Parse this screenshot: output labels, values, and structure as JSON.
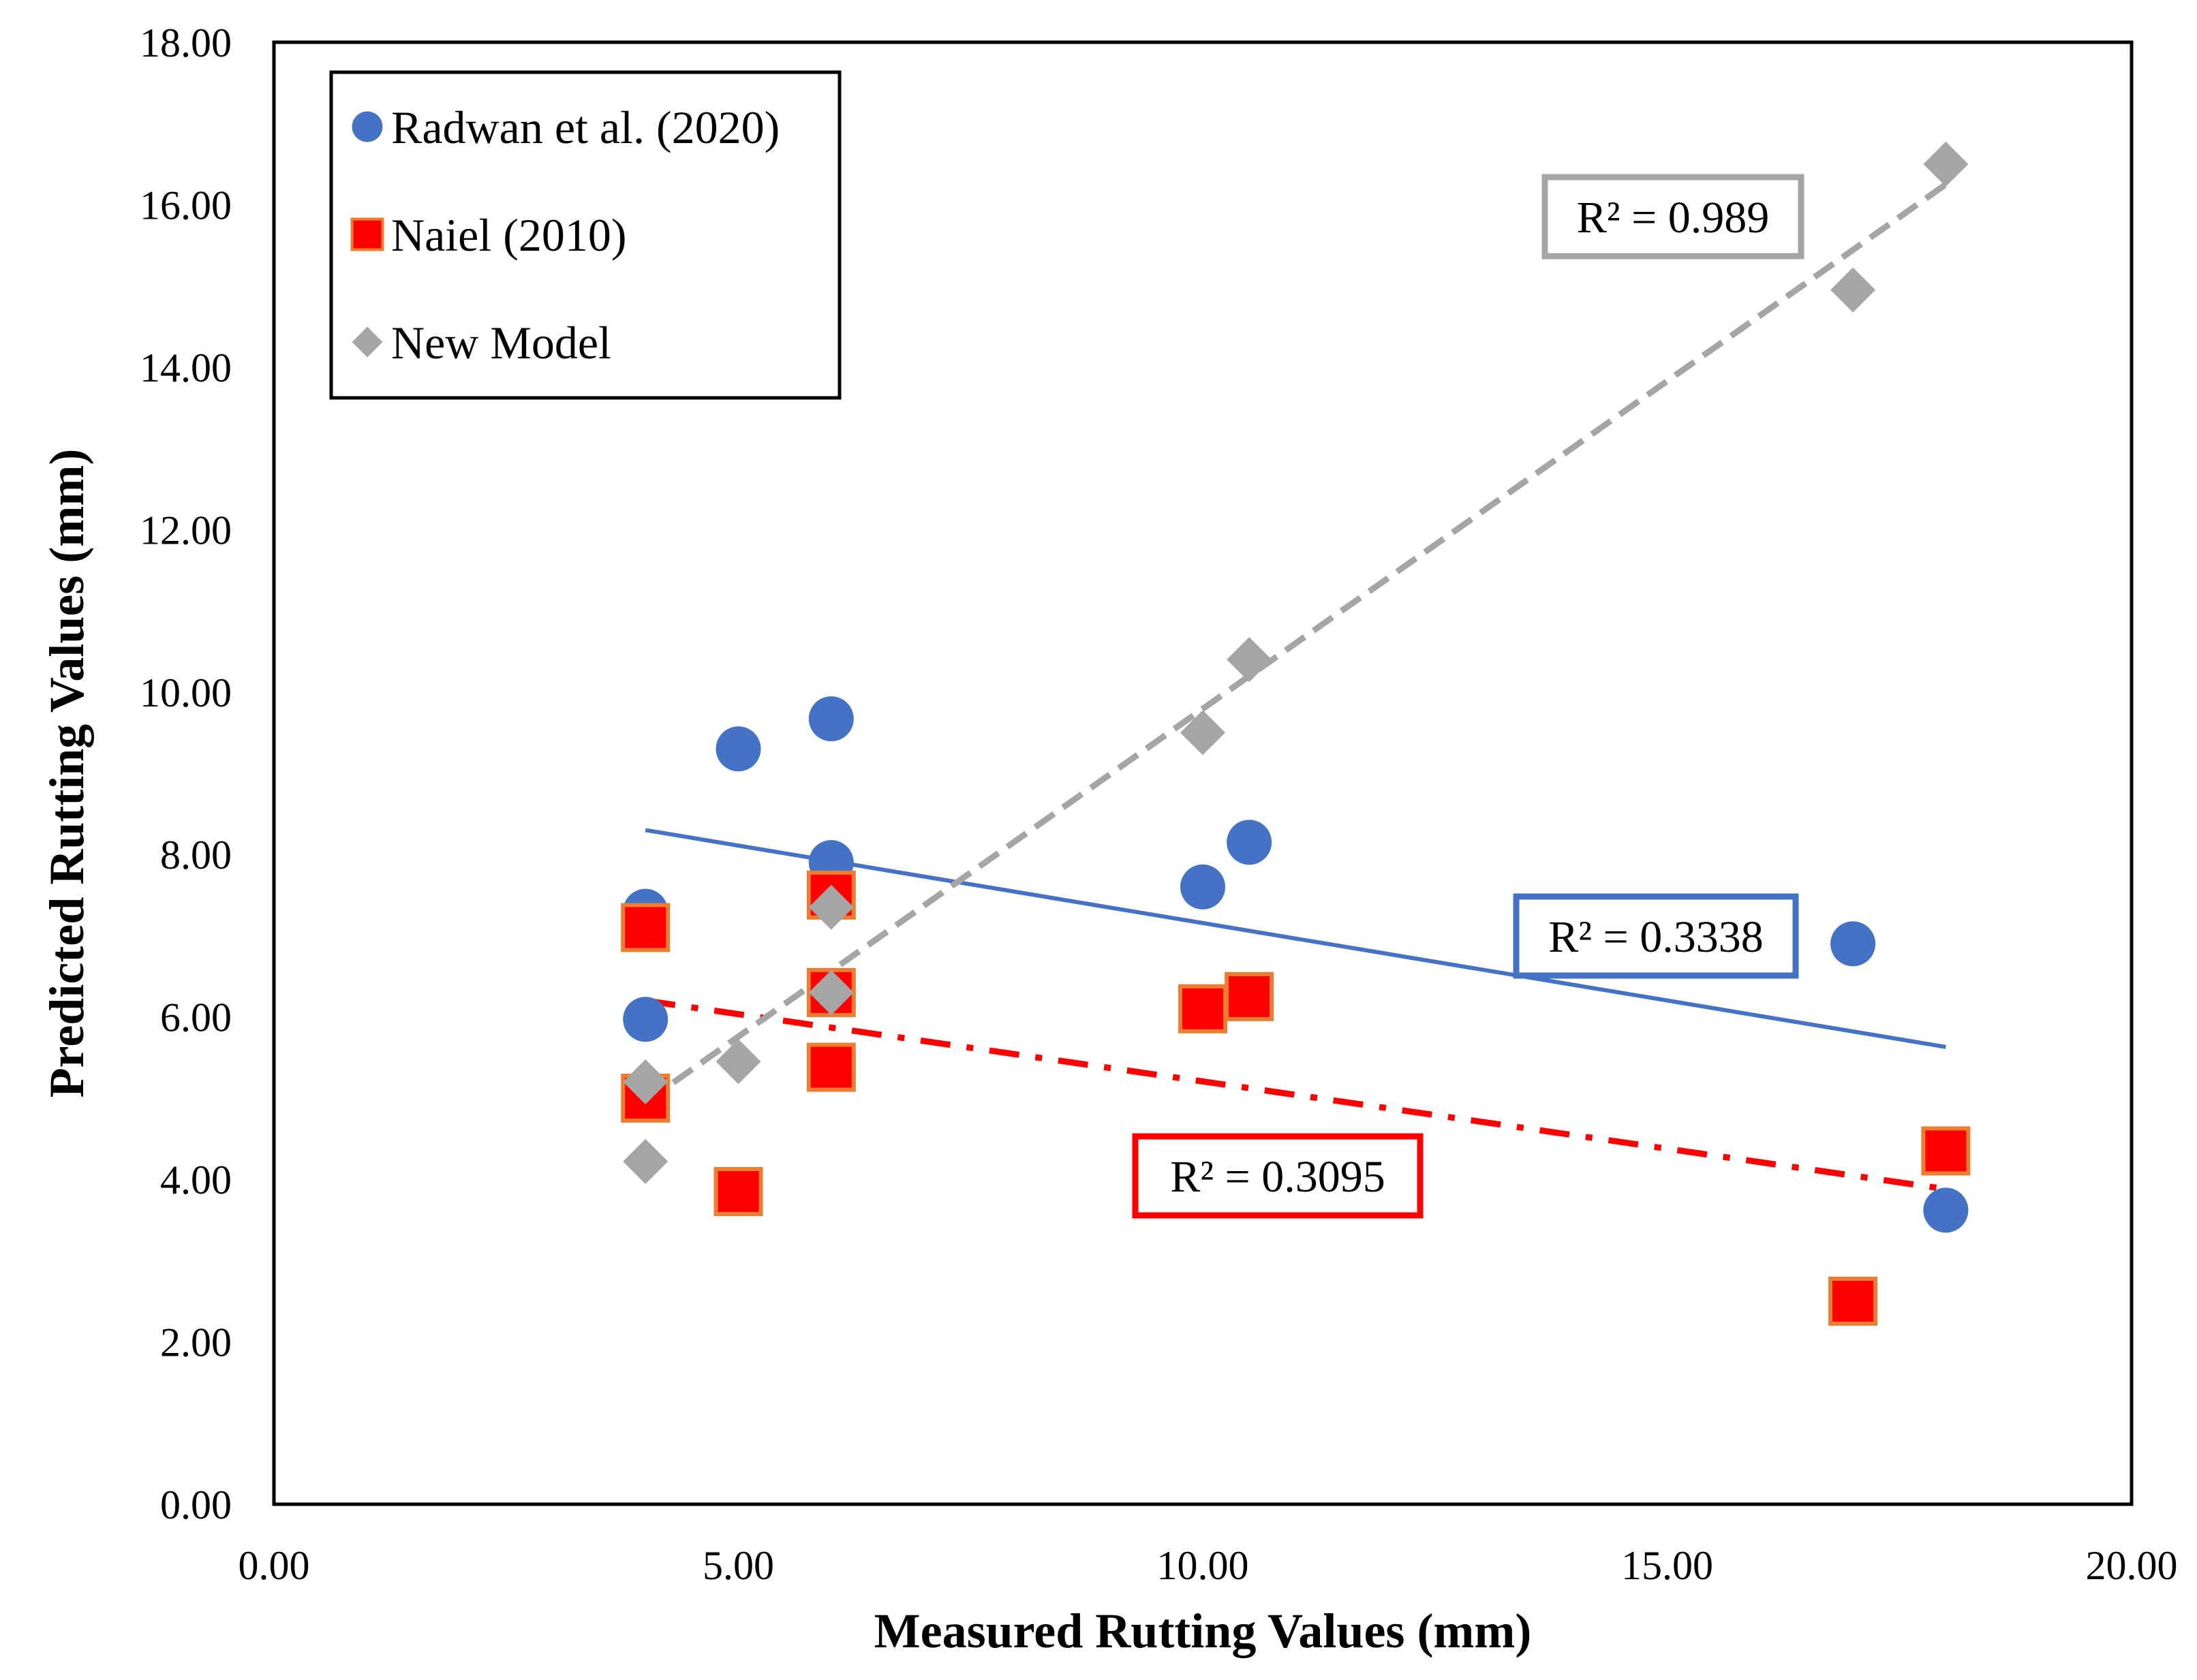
{
  "chart_data": {
    "type": "scatter",
    "xlabel": "Measured Rutting Values (mm)",
    "ylabel": "Predicted Rutting Values (mm)",
    "xlim": [
      0,
      20
    ],
    "ylim": [
      0,
      18
    ],
    "x_ticks": [
      "0.00",
      "5.00",
      "10.00",
      "15.00",
      "20.00"
    ],
    "y_ticks": [
      "0.00",
      "2.00",
      "4.00",
      "6.00",
      "8.00",
      "10.00",
      "12.00",
      "14.00",
      "16.00",
      "18.00"
    ],
    "grid": false,
    "legend_position": "top-left",
    "series": [
      {
        "name": "Radwan et al. (2020)",
        "marker": "circle",
        "color": "#4472C4",
        "points": [
          [
            4,
            7.3
          ],
          [
            4,
            5.97
          ],
          [
            5,
            9.3
          ],
          [
            6,
            9.67
          ],
          [
            6,
            7.9
          ],
          [
            10,
            7.6
          ],
          [
            10.5,
            8.15
          ],
          [
            17,
            6.9
          ],
          [
            18,
            3.62
          ]
        ],
        "trendline": {
          "x": [
            4,
            18
          ],
          "y": [
            8.3,
            5.63
          ],
          "style": "solid",
          "r2_label": "R² = 0.3338"
        }
      },
      {
        "name": "Naiel (2010)",
        "marker": "square",
        "color": "#FF0000",
        "edge_color": "#ED7D31",
        "points": [
          [
            4,
            7.1
          ],
          [
            4,
            5.0
          ],
          [
            5,
            3.85
          ],
          [
            6,
            7.5
          ],
          [
            6,
            6.3
          ],
          [
            6,
            5.38
          ],
          [
            10,
            6.1
          ],
          [
            10.5,
            6.25
          ],
          [
            17,
            2.5
          ],
          [
            18,
            4.35
          ]
        ],
        "trendline": {
          "x": [
            4,
            18
          ],
          "y": [
            6.2,
            3.88
          ],
          "style": "dash-dot",
          "r2_label": "R² = 0.3095"
        }
      },
      {
        "name": "New Model",
        "marker": "diamond",
        "color": "#A5A5A5",
        "points": [
          [
            4,
            5.2
          ],
          [
            4,
            4.22
          ],
          [
            5,
            5.45
          ],
          [
            6,
            7.35
          ],
          [
            6,
            6.3
          ],
          [
            10,
            9.5
          ],
          [
            10.5,
            10.4
          ],
          [
            17,
            14.95
          ],
          [
            18,
            16.5
          ]
        ],
        "trendline": {
          "x": [
            4,
            18
          ],
          "y": [
            4.95,
            16.25
          ],
          "style": "dashed",
          "r2_label": "R² = 0.989"
        }
      }
    ]
  }
}
